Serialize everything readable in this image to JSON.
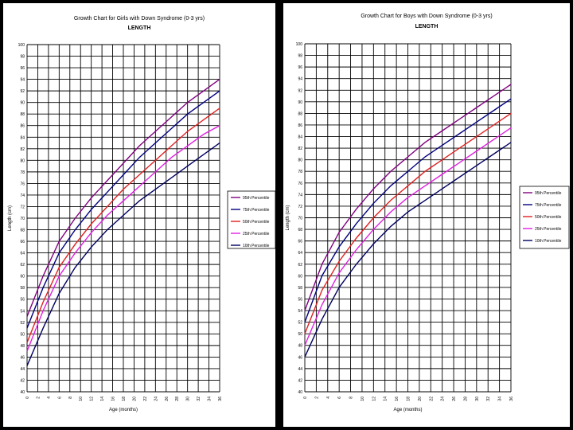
{
  "chart_data": [
    {
      "type": "line",
      "title": "Growth Chart for Girls with Down Syndrome (0-3 yrs)",
      "subtitle": "LENGTH",
      "xlabel": "Age (months)",
      "ylabel": "Length (cm)",
      "xlim": [
        0,
        36
      ],
      "ylim": [
        40,
        100
      ],
      "x_ticks": [
        0,
        2,
        4,
        6,
        8,
        10,
        12,
        14,
        16,
        18,
        20,
        22,
        24,
        26,
        28,
        30,
        32,
        34,
        36
      ],
      "y_ticks": [
        40,
        42,
        44,
        46,
        48,
        50,
        52,
        54,
        56,
        58,
        60,
        62,
        64,
        66,
        68,
        70,
        72,
        74,
        76,
        78,
        80,
        82,
        84,
        86,
        88,
        90,
        92,
        94,
        96,
        98,
        100
      ],
      "grid": true,
      "legend_position": "right-middle",
      "x": [
        0,
        3,
        6,
        9,
        12,
        15,
        18,
        21,
        24,
        27,
        30,
        33,
        36
      ],
      "series": [
        {
          "name": "95th Percentile",
          "color": "#800080",
          "values": [
            53,
            60,
            66,
            70,
            73.5,
            76.5,
            79.5,
            82.5,
            85,
            87.5,
            90,
            92,
            94
          ]
        },
        {
          "name": "75th Percentile",
          "color": "#000080",
          "values": [
            51,
            58,
            64,
            68,
            71.5,
            74.5,
            77.5,
            80.5,
            83,
            85.5,
            88,
            90,
            92
          ]
        },
        {
          "name": "50th Percentile",
          "color": "#e02020",
          "values": [
            48.5,
            55.5,
            61.5,
            65.5,
            69,
            72,
            75,
            77.5,
            80,
            82.5,
            85,
            87,
            89
          ]
        },
        {
          "name": "25th Percentile",
          "color": "#e020e0",
          "values": [
            47,
            54,
            60,
            64,
            67.5,
            70.5,
            73,
            75.5,
            78,
            80.5,
            82.5,
            84.5,
            86
          ]
        },
        {
          "name": "10th Percentile",
          "color": "#000060",
          "values": [
            44.5,
            51,
            57,
            61.5,
            65,
            68,
            70.5,
            73,
            75,
            77,
            79,
            81,
            83
          ]
        }
      ]
    },
    {
      "type": "line",
      "title": "Growth Chart for Boys with Down Syndrome (0-3 yrs)",
      "subtitle": "LENGTH",
      "xlabel": "Age (months)",
      "ylabel": "Length (cm)",
      "xlim": [
        0,
        36
      ],
      "ylim": [
        40,
        100
      ],
      "x_ticks": [
        0,
        2,
        4,
        6,
        8,
        10,
        12,
        14,
        16,
        18,
        20,
        22,
        24,
        26,
        28,
        30,
        32,
        34,
        36
      ],
      "y_ticks": [
        40,
        42,
        44,
        46,
        48,
        50,
        52,
        54,
        56,
        58,
        60,
        62,
        64,
        66,
        68,
        70,
        72,
        74,
        76,
        78,
        80,
        82,
        84,
        86,
        88,
        90,
        92,
        94,
        96,
        98,
        100
      ],
      "grid": true,
      "legend_position": "right-middle",
      "x": [
        0,
        3,
        6,
        9,
        12,
        15,
        18,
        21,
        24,
        27,
        30,
        33,
        36
      ],
      "series": [
        {
          "name": "95th Percentile",
          "color": "#800080",
          "values": [
            54,
            62,
            67.5,
            71.5,
            75,
            78,
            80.5,
            83,
            85,
            87,
            89,
            91,
            93
          ]
        },
        {
          "name": "75th Percentile",
          "color": "#000080",
          "values": [
            52,
            60,
            65,
            69,
            72.5,
            75.5,
            78,
            80.5,
            82.5,
            84.5,
            86.5,
            88.5,
            90.5
          ]
        },
        {
          "name": "50th Percentile",
          "color": "#e02020",
          "values": [
            50,
            57.5,
            62.5,
            66.5,
            70,
            73,
            75.5,
            78,
            80,
            82,
            84,
            86,
            88
          ]
        },
        {
          "name": "25th Percentile",
          "color": "#e020e0",
          "values": [
            48,
            55,
            60.5,
            64.5,
            68,
            71,
            73.5,
            75.5,
            77.5,
            79.5,
            81.5,
            83.5,
            85.5
          ]
        },
        {
          "name": "10th Percentile",
          "color": "#000060",
          "values": [
            46,
            52.5,
            58,
            62,
            65.5,
            68.5,
            71,
            73,
            75,
            77,
            79,
            81,
            83
          ]
        }
      ]
    }
  ]
}
